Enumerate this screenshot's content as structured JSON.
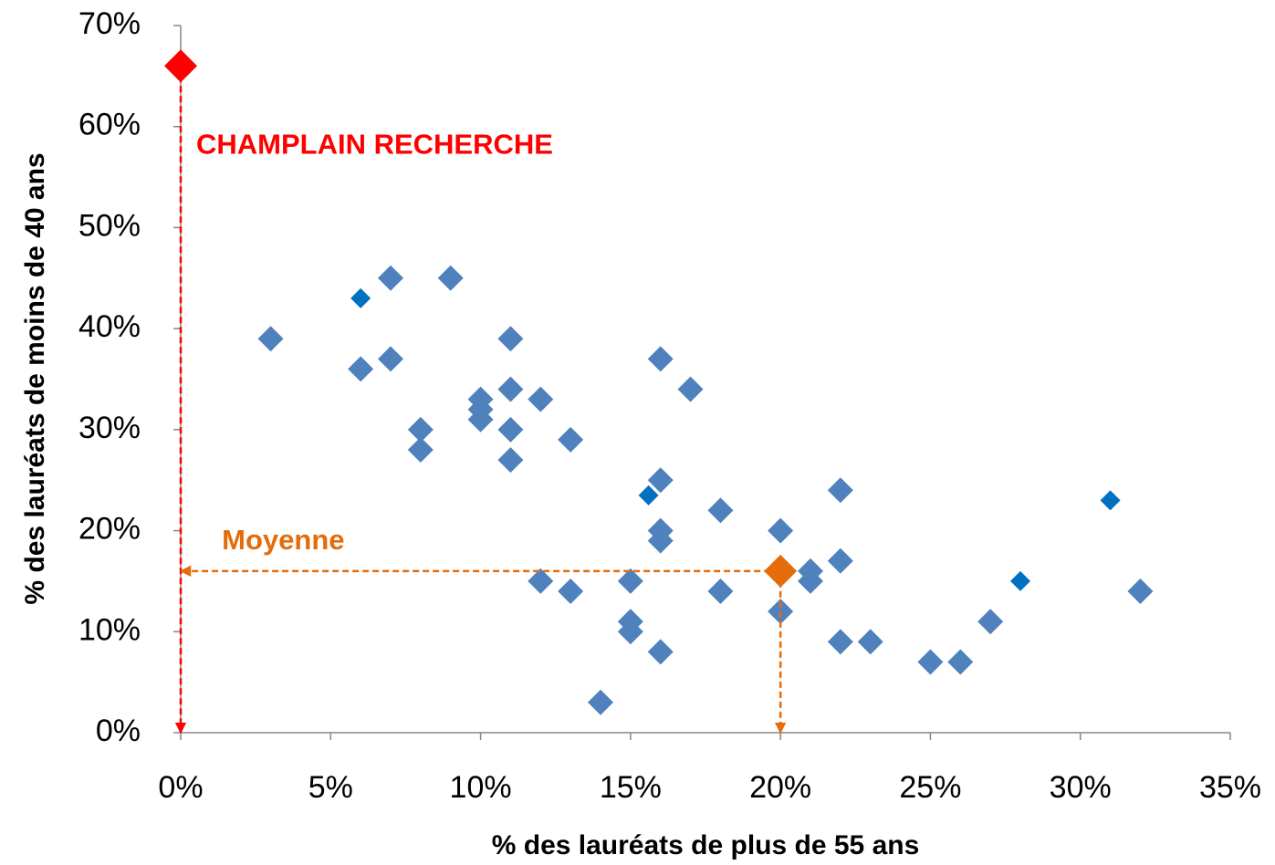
{
  "chart_data": {
    "type": "scatter",
    "xlabel": "% des lauréats de plus de 55 ans",
    "ylabel": "% des lauréats de moins de 40 ans",
    "xlim": [
      0,
      35
    ],
    "ylim": [
      0,
      70
    ],
    "xticks": [
      {
        "value": 0,
        "label": "0%"
      },
      {
        "value": 5,
        "label": "5%"
      },
      {
        "value": 10,
        "label": "10%"
      },
      {
        "value": 15,
        "label": "15%"
      },
      {
        "value": 20,
        "label": "20%"
      },
      {
        "value": 25,
        "label": "25%"
      },
      {
        "value": 30,
        "label": "30%"
      },
      {
        "value": 35,
        "label": "35%"
      }
    ],
    "yticks": [
      {
        "value": 0,
        "label": "0%"
      },
      {
        "value": 10,
        "label": "10%"
      },
      {
        "value": 20,
        "label": "20%"
      },
      {
        "value": 30,
        "label": "30%"
      },
      {
        "value": 40,
        "label": "40%"
      },
      {
        "value": 50,
        "label": "50%"
      },
      {
        "value": 60,
        "label": "60%"
      },
      {
        "value": 70,
        "label": "70%"
      }
    ],
    "grid": false,
    "series": [
      {
        "color": "#4f81bd",
        "x": [
          3,
          6,
          7,
          7,
          9,
          8,
          8,
          10,
          10,
          10,
          11,
          11,
          11,
          11,
          12,
          13,
          12,
          13,
          14,
          15,
          15,
          15,
          16,
          16,
          16,
          16,
          16,
          17,
          18,
          18,
          20,
          20,
          21,
          21,
          22,
          22,
          22,
          23,
          25,
          26,
          27,
          32
        ],
        "values": [
          39,
          36,
          45,
          37,
          45,
          30,
          28,
          33,
          32,
          31,
          39,
          34,
          30,
          27,
          33,
          29,
          15,
          14,
          3,
          15,
          11,
          10,
          37,
          25,
          20,
          19,
          8,
          34,
          22,
          14,
          20,
          12,
          16,
          15,
          24,
          17,
          9,
          9,
          7,
          7,
          11,
          14
        ]
      },
      {
        "color": "#0070c0",
        "x": [
          6,
          15.6,
          28,
          31
        ],
        "values": [
          43,
          23.5,
          15,
          23
        ]
      },
      {
        "color": "#ff0000",
        "x": [
          0
        ],
        "values": [
          66
        ],
        "label": "CHAMPLAIN RECHERCHE"
      },
      {
        "color": "#e46c0a",
        "x": [
          20
        ],
        "values": [
          16
        ],
        "label": "Moyenne"
      }
    ]
  }
}
